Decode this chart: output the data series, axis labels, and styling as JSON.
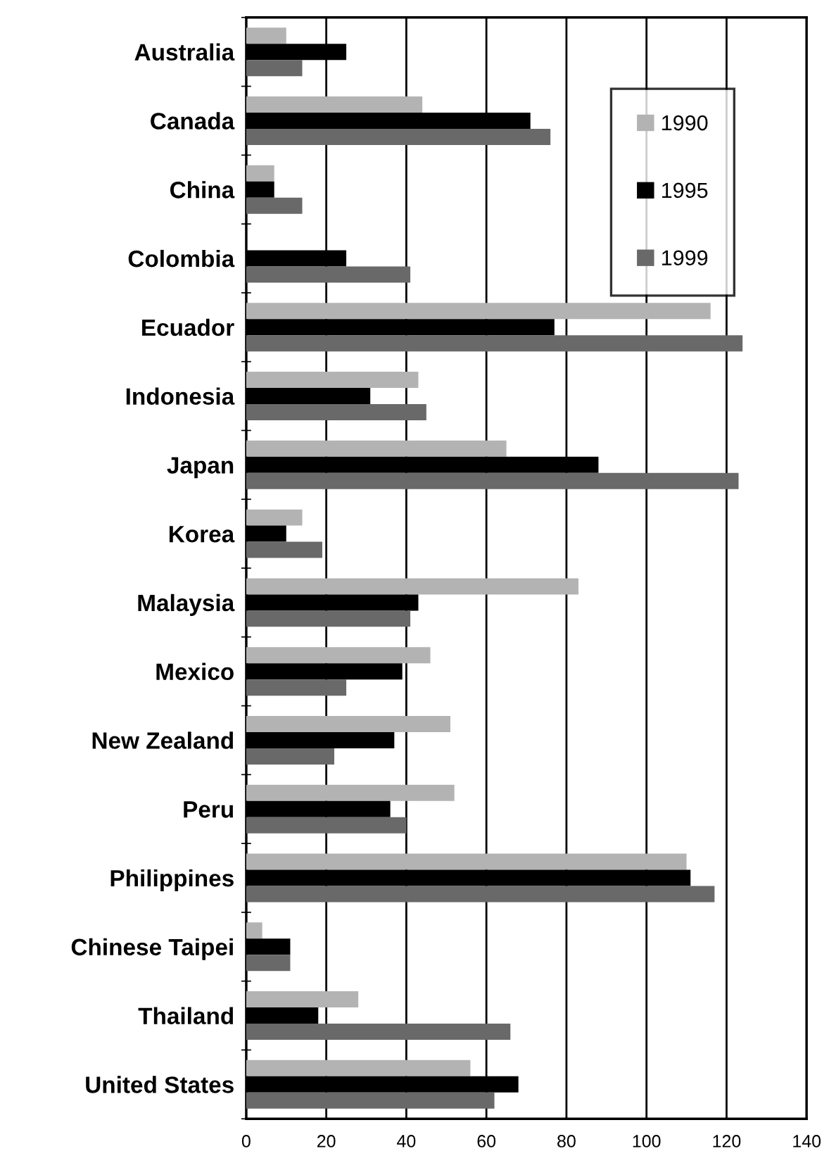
{
  "chart_data": {
    "type": "bar",
    "orientation": "horizontal",
    "categories": [
      "Australia",
      "Canada",
      "China",
      "Colombia",
      "Ecuador",
      "Indonesia",
      "Japan",
      "Korea",
      "Malaysia",
      "Mexico",
      "New Zealand",
      "Peru",
      "Philippines",
      "Chinese Taipei",
      "Thailand",
      "United States"
    ],
    "series": [
      {
        "name": "1990",
        "color": "#b3b3b3",
        "values": [
          10,
          44,
          7,
          0,
          116,
          43,
          65,
          14,
          83,
          46,
          51,
          52,
          110,
          4,
          28,
          56
        ]
      },
      {
        "name": "1995",
        "color": "#000000",
        "values": [
          25,
          71,
          7,
          25,
          77,
          31,
          88,
          10,
          43,
          39,
          37,
          36,
          111,
          11,
          18,
          68
        ]
      },
      {
        "name": "1999",
        "color": "#696969",
        "values": [
          14,
          76,
          14,
          41,
          124,
          45,
          123,
          19,
          41,
          25,
          22,
          40,
          117,
          11,
          66,
          62
        ]
      }
    ],
    "xlim": [
      0,
      140
    ],
    "xticks": [
      0,
      20,
      40,
      60,
      80,
      100,
      120,
      140
    ],
    "grid": "x",
    "legend": "top right"
  }
}
